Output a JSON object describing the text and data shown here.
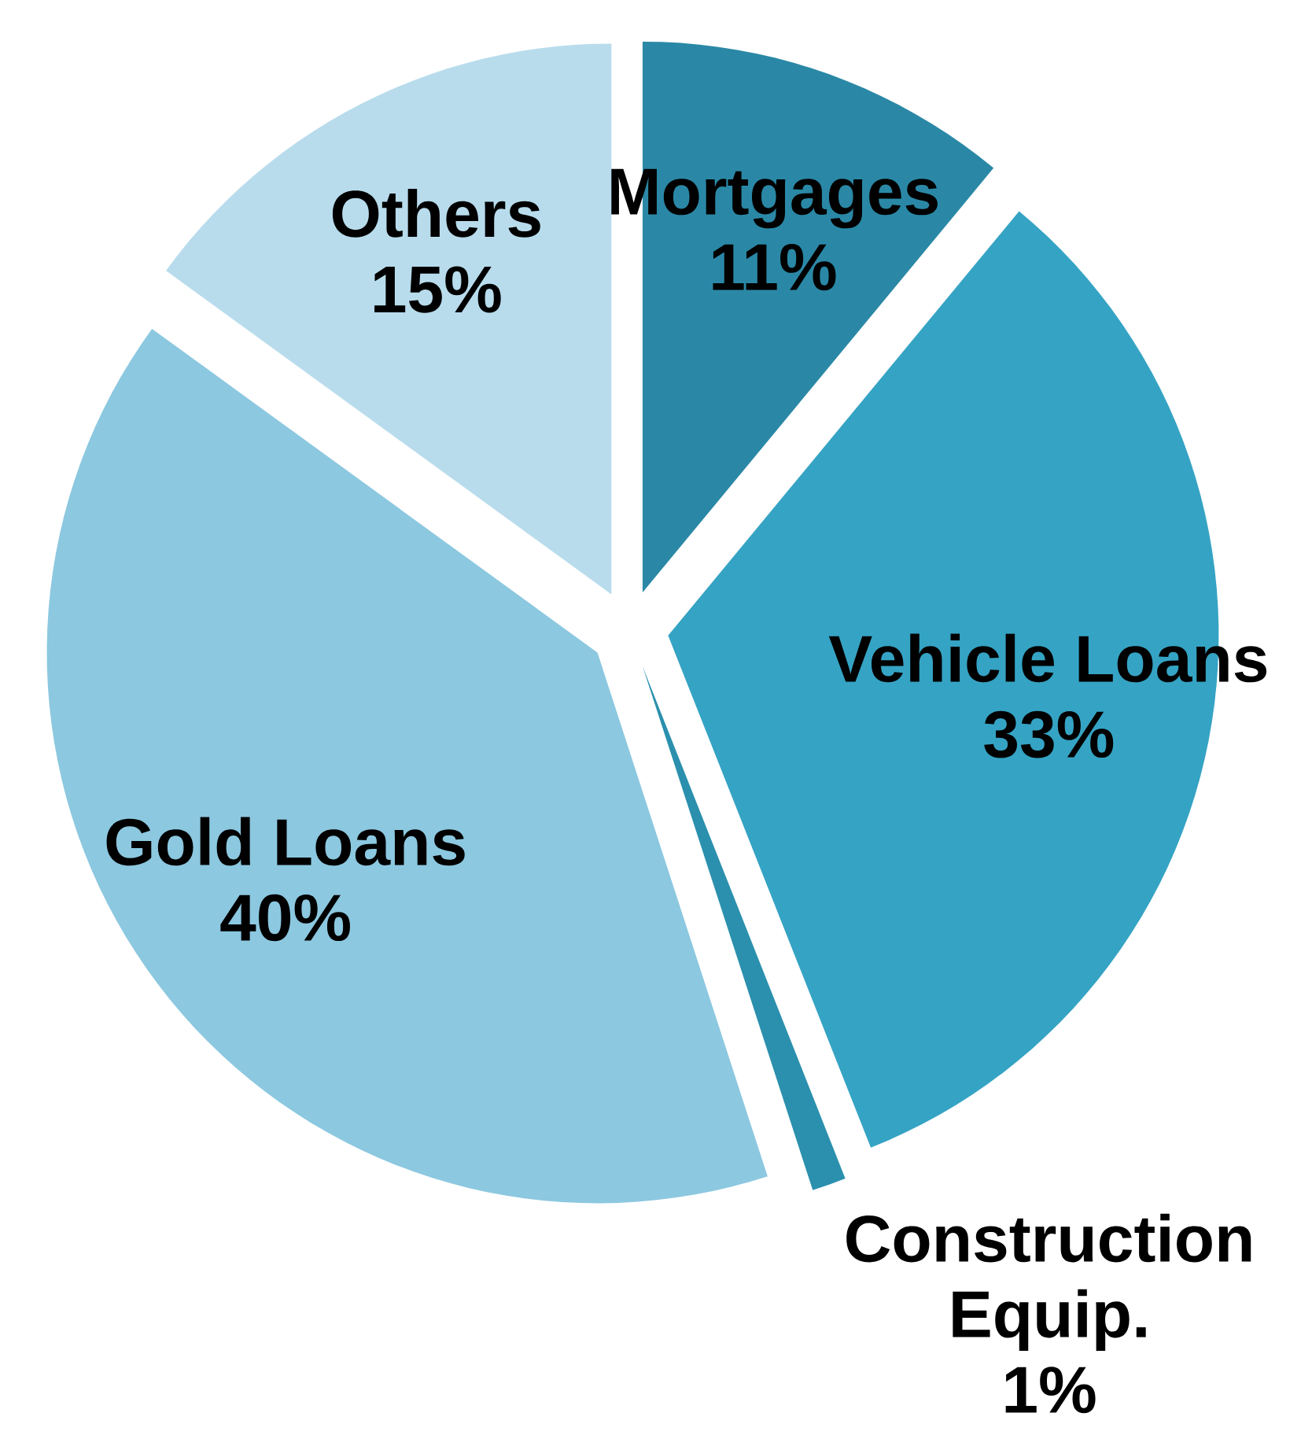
{
  "chart_data": {
    "type": "pie",
    "categories": [
      "Mortgages",
      "Vehicle Loans",
      "Construction Equip.",
      "Gold Loans",
      "Others"
    ],
    "values": [
      11,
      33,
      1,
      40,
      15
    ],
    "value_labels": [
      "11%",
      "33%",
      "1%",
      "40%",
      "15%"
    ],
    "colors": [
      "#2a88a6",
      "#35a3c4",
      "#2a90ad",
      "#8cc8e0",
      "#b8dcec"
    ]
  }
}
